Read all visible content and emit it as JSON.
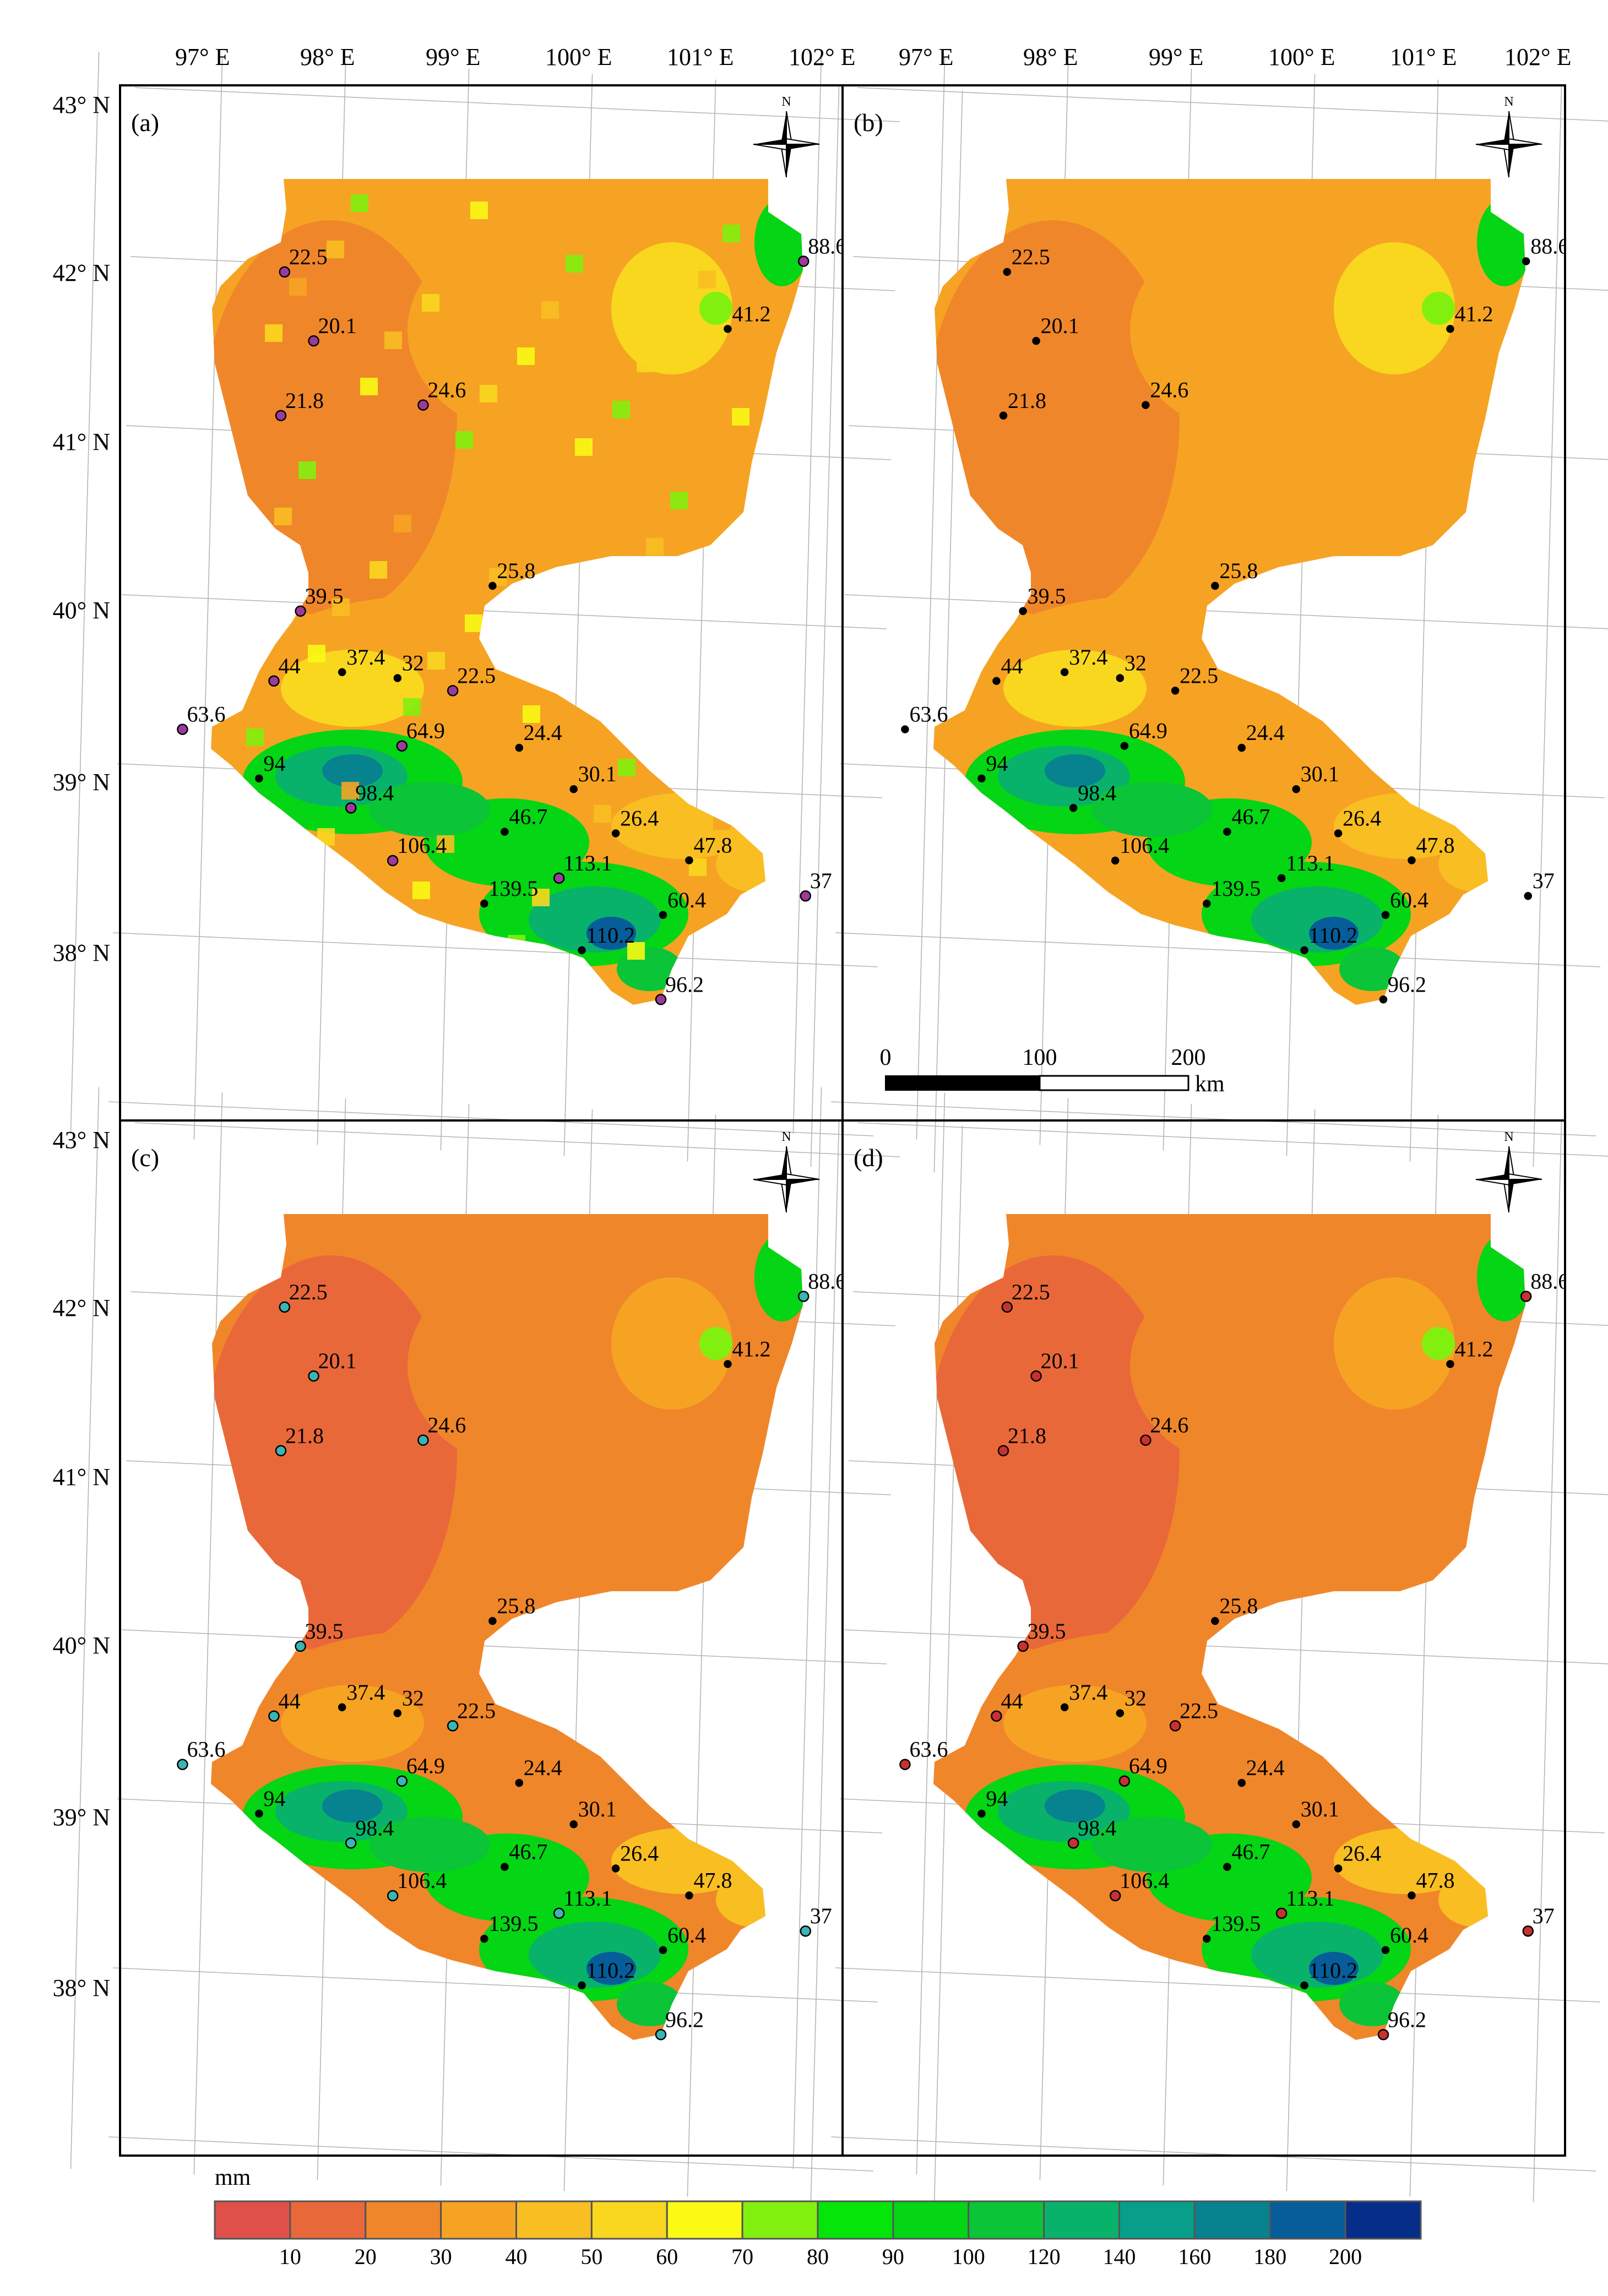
{
  "title": "",
  "map": {
    "panels": [
      "(a)",
      "(b)",
      "(c)",
      "(d)"
    ],
    "lon_labels": [
      "97° E",
      "98° E",
      "99° E",
      "100° E",
      "101° E",
      "102° E"
    ],
    "lat_labels": [
      "43° N",
      "42° N",
      "41° N",
      "40° N",
      "39° N",
      "38° N"
    ],
    "north_label": "N",
    "scale_bar": {
      "ticks": [
        "0",
        "100",
        "200"
      ],
      "unit": "km"
    },
    "legend": {
      "unit": "mm",
      "ticks": [
        "10",
        "20",
        "30",
        "40",
        "50",
        "60",
        "70",
        "80",
        "90",
        "100",
        "120",
        "140",
        "160",
        "180",
        "200"
      ],
      "colors": [
        "#e0504a",
        "#e9683a",
        "#f0862a",
        "#f6a323",
        "#f8be22",
        "#f9d71f",
        "#fafa14",
        "#82f00e",
        "#04e60a",
        "#04d515",
        "#0bc437",
        "#08b26a",
        "#079e8a",
        "#07828f",
        "#065d99",
        "#062d88"
      ]
    },
    "station_marker_colors": {
      "a": "#9b3a9b",
      "c": "#3ab5b5",
      "d": "#c63232"
    }
  },
  "stations": [
    {
      "label": "22.5",
      "lon": 97.55,
      "lat": 41.95,
      "mk": true
    },
    {
      "label": "20.1",
      "lon": 97.8,
      "lat": 41.55,
      "mk": true
    },
    {
      "label": "21.8",
      "lon": 97.55,
      "lat": 41.1,
      "mk": true
    },
    {
      "label": "24.6",
      "lon": 98.7,
      "lat": 41.2,
      "mk": true
    },
    {
      "label": "88.6",
      "lon": 101.75,
      "lat": 42.15,
      "mk": true
    },
    {
      "label": "41.2",
      "lon": 101.15,
      "lat": 41.73,
      "mk": false
    },
    {
      "label": "25.8",
      "lon": 99.3,
      "lat": 40.15,
      "mk": false
    },
    {
      "label": "39.5",
      "lon": 97.75,
      "lat": 39.95,
      "mk": true
    },
    {
      "label": "44",
      "lon": 97.55,
      "lat": 39.53,
      "mk": true
    },
    {
      "label": "37.4",
      "lon": 98.1,
      "lat": 39.6,
      "mk": false
    },
    {
      "label": "32",
      "lon": 98.55,
      "lat": 39.58,
      "mk": false
    },
    {
      "label": "22.5",
      "lon": 99.0,
      "lat": 39.52,
      "mk": true
    },
    {
      "label": "63.6",
      "lon": 96.82,
      "lat": 39.22,
      "mk": true
    },
    {
      "label": "64.9",
      "lon": 98.6,
      "lat": 39.18,
      "mk": true
    },
    {
      "label": "24.4",
      "lon": 99.55,
      "lat": 39.2,
      "mk": false
    },
    {
      "label": "94",
      "lon": 97.45,
      "lat": 38.95,
      "mk": false
    },
    {
      "label": "30.1",
      "lon": 100.0,
      "lat": 38.97,
      "mk": false
    },
    {
      "label": "98.4",
      "lon": 98.2,
      "lat": 38.8,
      "mk": true
    },
    {
      "label": "46.7",
      "lon": 99.45,
      "lat": 38.7,
      "mk": false
    },
    {
      "label": "26.4",
      "lon": 100.35,
      "lat": 38.72,
      "mk": false
    },
    {
      "label": "47.8",
      "lon": 100.95,
      "lat": 38.58,
      "mk": false
    },
    {
      "label": "106.4",
      "lon": 98.55,
      "lat": 38.5,
      "mk": true
    },
    {
      "label": "113.1",
      "lon": 99.9,
      "lat": 38.44,
      "mk": true
    },
    {
      "label": "37",
      "lon": 101.9,
      "lat": 38.4,
      "mk": true
    },
    {
      "label": "139.5",
      "lon": 99.3,
      "lat": 38.27,
      "mk": false
    },
    {
      "label": "60.4",
      "lon": 100.75,
      "lat": 38.25,
      "mk": false
    },
    {
      "label": "110.2",
      "lon": 100.1,
      "lat": 38.02,
      "mk": false
    },
    {
      "label": "96.2",
      "lon": 100.75,
      "lat": 37.75,
      "mk": true
    }
  ]
}
